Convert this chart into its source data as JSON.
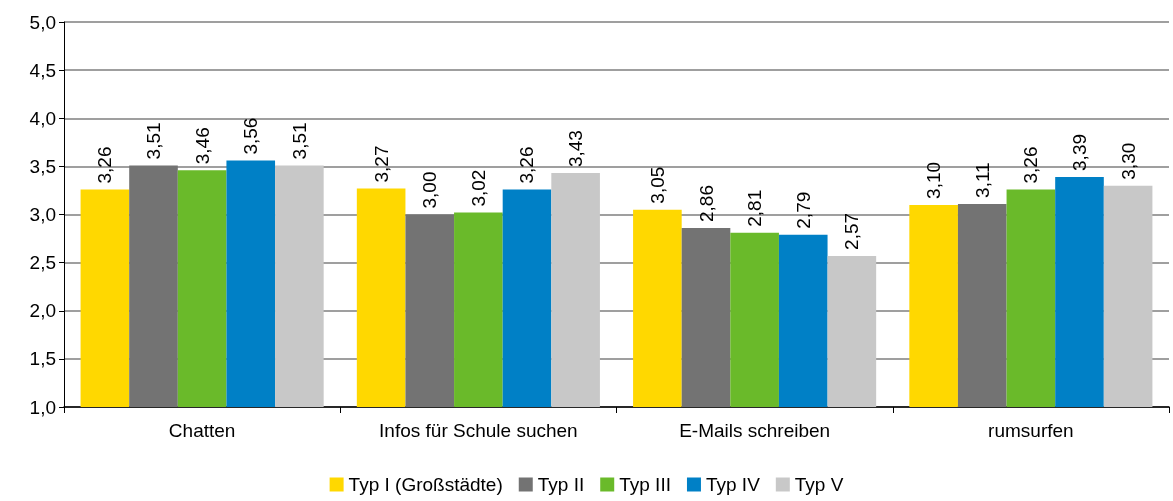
{
  "chart_data": {
    "type": "bar",
    "categories": [
      "Chatten",
      "Infos für Schule suchen",
      "E-Mails schreiben",
      "rumsurfen"
    ],
    "series": [
      {
        "name": "Typ I (Großstädte)",
        "color": "#ffd800",
        "values": [
          3.26,
          3.27,
          3.05,
          3.1
        ],
        "value_labels": [
          "3,26",
          "3,27",
          "3,05",
          "3,10"
        ]
      },
      {
        "name": "Typ II",
        "color": "#737373",
        "values": [
          3.51,
          3.0,
          2.86,
          3.11
        ],
        "value_labels": [
          "3,51",
          "3,00",
          "2,86",
          "3,11"
        ]
      },
      {
        "name": "Typ III",
        "color": "#6aba2a",
        "values": [
          3.46,
          3.02,
          2.81,
          3.26
        ],
        "value_labels": [
          "3,46",
          "3,02",
          "2,81",
          "3,26"
        ]
      },
      {
        "name": "Typ IV",
        "color": "#0080c6",
        "values": [
          3.56,
          3.26,
          2.79,
          3.39
        ],
        "value_labels": [
          "3,56",
          "3,26",
          "2,79",
          "3,39"
        ]
      },
      {
        "name": "Typ V",
        "color": "#c8c8c8",
        "values": [
          3.51,
          3.43,
          2.57,
          3.3
        ],
        "value_labels": [
          "3,51",
          "3,43",
          "2,57",
          "3,30"
        ]
      }
    ],
    "ylim": [
      1,
      5
    ],
    "yticks": [
      {
        "value": 1,
        "label": "1,0"
      },
      {
        "value": 1.5,
        "label": "1,5"
      },
      {
        "value": 2,
        "label": "2,0"
      },
      {
        "value": 2.5,
        "label": "2,5"
      },
      {
        "value": 3,
        "label": "3,0"
      },
      {
        "value": 3.5,
        "label": "3,5"
      },
      {
        "value": 4,
        "label": "4,0"
      },
      {
        "value": 4.5,
        "label": "4,5"
      },
      {
        "value": 5,
        "label": "5,0"
      }
    ],
    "grid": "y",
    "legend": "bottom"
  }
}
